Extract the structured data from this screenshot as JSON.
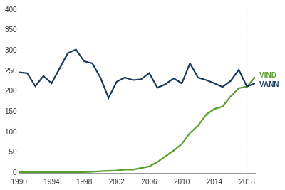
{
  "chart_data": {
    "type": "line",
    "x": [
      1990,
      1991,
      1992,
      1993,
      1994,
      1995,
      1996,
      1997,
      1998,
      1999,
      2000,
      2001,
      2002,
      2003,
      2004,
      2005,
      2006,
      2007,
      2008,
      2009,
      2010,
      2011,
      2012,
      2013,
      2014,
      2015,
      2016,
      2017,
      2018,
      2019
    ],
    "series": [
      {
        "name": "VANN",
        "color": "#1b3a5c",
        "values": [
          247,
          245,
          213,
          238,
          220,
          257,
          294,
          303,
          274,
          269,
          234,
          184,
          224,
          234,
          228,
          230,
          245,
          209,
          218,
          232,
          220,
          269,
          234,
          228,
          220,
          211,
          226,
          253,
          212,
          220
        ]
      },
      {
        "name": "VIND",
        "color": "#5a9e2f",
        "values": [
          2,
          2,
          2,
          2,
          2,
          2,
          2,
          2,
          2,
          3,
          4,
          5,
          6,
          8,
          8,
          12,
          16,
          27,
          41,
          55,
          71,
          98,
          116,
          143,
          157,
          163,
          188,
          208,
          212,
          235
        ]
      }
    ],
    "xlim": [
      1990,
      2019
    ],
    "xticks": [
      1990,
      1994,
      1998,
      2002,
      2006,
      2010,
      2014,
      2018
    ],
    "ylim": [
      0,
      400
    ],
    "yticks": [
      0,
      50,
      100,
      150,
      200,
      250,
      300,
      350,
      400
    ],
    "vertical_line": 2018,
    "grid": false
  }
}
